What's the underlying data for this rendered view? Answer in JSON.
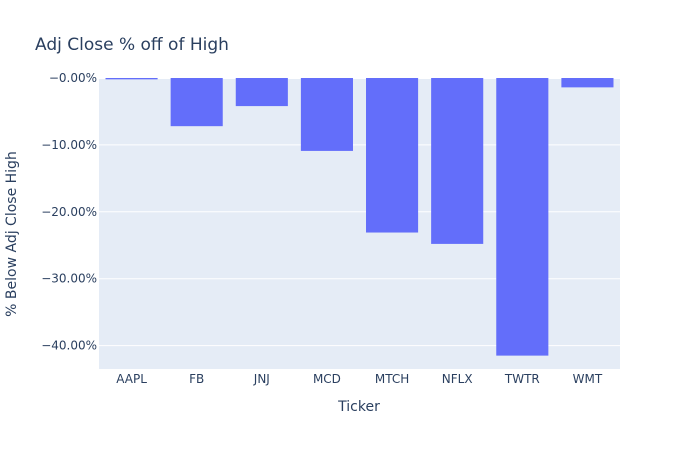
{
  "chart_data": {
    "type": "bar",
    "title": "Adj Close % off of High",
    "xlabel": "Ticker",
    "ylabel": "% Below Adj Close High",
    "categories": [
      "AAPL",
      "FB",
      "JNJ",
      "MCD",
      "MTCH",
      "NFLX",
      "TWTR",
      "WMT"
    ],
    "values": [
      -0.2,
      -7.2,
      -4.2,
      -10.9,
      -23.1,
      -24.8,
      -41.5,
      -1.4
    ],
    "ylim": [
      -43.5,
      0
    ],
    "yticks": [
      0,
      -10,
      -20,
      -30,
      -40
    ],
    "ytick_labels": [
      "−0.00%",
      "−10.00%",
      "−20.00%",
      "−30.00%",
      "−40.00%"
    ],
    "grid": true,
    "bar_color": "#636efa",
    "plot_background": "#e5ecf6",
    "text_color": "#2a3f5f"
  }
}
